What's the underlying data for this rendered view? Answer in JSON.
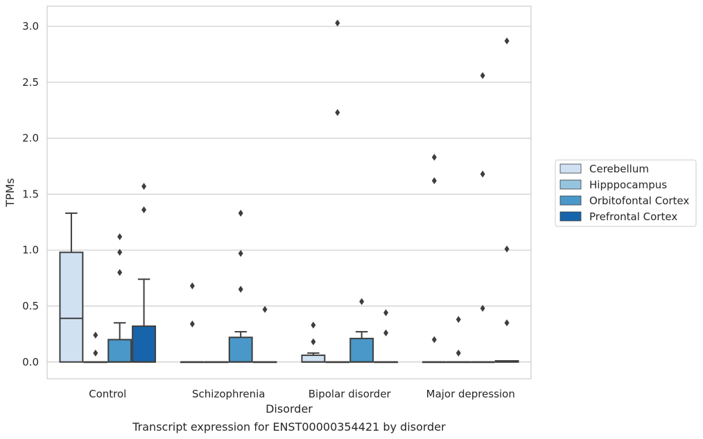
{
  "chart_data": {
    "type": "box",
    "title": "",
    "caption": "Transcript expression for ENST00000354421 by disorder",
    "xlabel": "Disorder",
    "ylabel": "TPMs",
    "ylim": [
      -0.15,
      3.18
    ],
    "yticks": [
      0.0,
      0.5,
      1.0,
      1.5,
      2.0,
      2.5,
      3.0
    ],
    "yticklabels": [
      "0.0",
      "0.5",
      "1.0",
      "1.5",
      "2.0",
      "2.5",
      "3.0"
    ],
    "grid": "horizontal",
    "legend_position": "right",
    "categories": [
      "Control",
      "Schizophrenia",
      "Bipolar disorder",
      "Major depression"
    ],
    "series": [
      {
        "name": "Cerebellum",
        "color": "#d0e1f2",
        "boxes": [
          {
            "min": 0.0,
            "q1": 0.0,
            "median": 0.39,
            "q3": 0.98,
            "max": 1.33,
            "outliers": []
          },
          {
            "min": 0.0,
            "q1": 0.0,
            "median": 0.0,
            "q3": 0.0,
            "max": 0.0,
            "outliers": [
              0.34,
              0.68
            ]
          },
          {
            "min": 0.0,
            "q1": 0.0,
            "median": 0.0,
            "q3": 0.06,
            "max": 0.08,
            "outliers": [
              0.18,
              0.33
            ]
          },
          {
            "min": 0.0,
            "q1": 0.0,
            "median": 0.0,
            "q3": 0.0,
            "max": 0.0,
            "outliers": [
              0.2,
              1.62,
              1.83
            ]
          }
        ]
      },
      {
        "name": "Hipppocampus",
        "color": "#94c4df",
        "boxes": [
          {
            "min": 0.0,
            "q1": 0.0,
            "median": 0.0,
            "q3": 0.0,
            "max": 0.0,
            "outliers": [
              0.08,
              0.24
            ]
          },
          {
            "min": 0.0,
            "q1": 0.0,
            "median": 0.0,
            "q3": 0.0,
            "max": 0.0,
            "outliers": []
          },
          {
            "min": 0.0,
            "q1": 0.0,
            "median": 0.0,
            "q3": 0.0,
            "max": 0.0,
            "outliers": [
              2.23,
              3.03
            ]
          },
          {
            "min": 0.0,
            "q1": 0.0,
            "median": 0.0,
            "q3": 0.0,
            "max": 0.0,
            "outliers": [
              0.08,
              0.38
            ]
          }
        ]
      },
      {
        "name": "Orbitofontal Cortex",
        "color": "#4a98c9",
        "boxes": [
          {
            "min": 0.0,
            "q1": 0.0,
            "median": 0.0,
            "q3": 0.2,
            "max": 0.35,
            "outliers": [
              0.8,
              0.98,
              1.12
            ]
          },
          {
            "min": 0.0,
            "q1": 0.0,
            "median": 0.0,
            "q3": 0.22,
            "max": 0.27,
            "outliers": [
              0.65,
              0.97,
              1.33
            ]
          },
          {
            "min": 0.0,
            "q1": 0.0,
            "median": 0.0,
            "q3": 0.21,
            "max": 0.27,
            "outliers": [
              0.54
            ]
          },
          {
            "min": 0.0,
            "q1": 0.0,
            "median": 0.0,
            "q3": 0.0,
            "max": 0.0,
            "outliers": [
              0.48,
              1.68,
              2.56
            ]
          }
        ]
      },
      {
        "name": "Prefrontal Cortex",
        "color": "#1764ab",
        "boxes": [
          {
            "min": 0.0,
            "q1": 0.0,
            "median": 0.0,
            "q3": 0.32,
            "max": 0.74,
            "outliers": [
              1.36,
              1.57
            ]
          },
          {
            "min": 0.0,
            "q1": 0.0,
            "median": 0.0,
            "q3": 0.0,
            "max": 0.0,
            "outliers": [
              0.47
            ]
          },
          {
            "min": 0.0,
            "q1": 0.0,
            "median": 0.0,
            "q3": 0.0,
            "max": 0.0,
            "outliers": [
              0.26,
              0.44
            ]
          },
          {
            "min": 0.0,
            "q1": 0.0,
            "median": 0.0,
            "q3": 0.01,
            "max": 0.01,
            "outliers": [
              0.35,
              1.01,
              2.87
            ]
          }
        ]
      }
    ]
  }
}
